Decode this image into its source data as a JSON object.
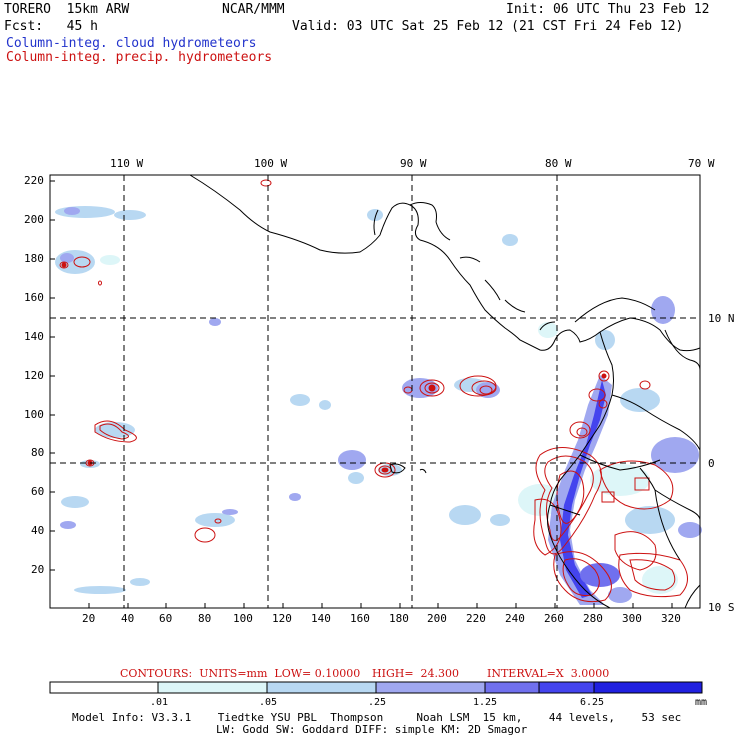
{
  "header": {
    "model": "TORERO  15km ARW",
    "org": "NCAR/MMM",
    "init": "Init: 06 UTC Thu 23 Feb 12",
    "fcst": "Fcst:   45 h",
    "valid": "Valid: 03 UTC Sat 25 Feb 12 (21 CST Fri 24 Feb 12)",
    "field1": "Column-integ. cloud hydrometeors",
    "field2": "Column-integ. precip. hydrometeors"
  },
  "map": {
    "lon_labels": [
      "110 W",
      "100 W",
      "90 W",
      "80 W",
      "70 W"
    ],
    "lat_labels": [
      "10 N",
      "0",
      "10 S"
    ],
    "y_ticks": [
      "220",
      "200",
      "180",
      "160",
      "140",
      "120",
      "100",
      "80",
      "60",
      "40",
      "20"
    ],
    "x_ticks": [
      "20",
      "40",
      "60",
      "80",
      "100",
      "120",
      "140",
      "160",
      "180",
      "200",
      "220",
      "240",
      "260",
      "280",
      "300",
      "320"
    ]
  },
  "contours": {
    "units_label": "CONTOURS:  UNITS=mm  LOW= 0.10000",
    "high_label": "HIGH=  24.300",
    "interval_label": "INTERVAL=X  3.0000"
  },
  "colorbar": {
    "labels": [
      ".01",
      ".05",
      ".25",
      "1.25",
      "6.25"
    ],
    "unit": "mm",
    "colors": [
      "#ffffff",
      "#ddf6f8",
      "#b8d8f2",
      "#a0a8f0",
      "#7070ee",
      "#4444ee",
      "#2020e0"
    ]
  },
  "footer": {
    "line1": "Model Info: V3.3.1    Tiedtke YSU PBL  Thompson     Noah LSM  15 km,    44 levels,    53 sec",
    "line2": "LW: Godd SW: Goddard DIFF: simple KM: 2D Smagor"
  }
}
